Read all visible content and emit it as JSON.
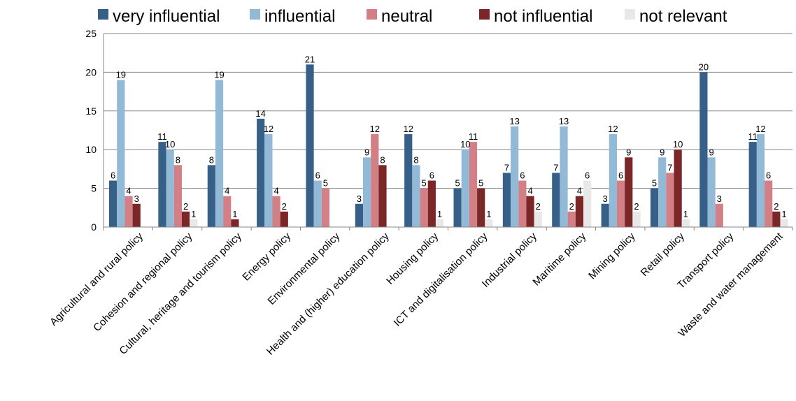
{
  "chart_data": {
    "type": "bar",
    "title": "",
    "xlabel": "",
    "ylabel": "",
    "ylim": [
      0,
      25
    ],
    "yticks": [
      0,
      5,
      10,
      15,
      20,
      25
    ],
    "grid": true,
    "legend_position": "top",
    "categories": [
      "Agricultural and rural policy",
      "Cohesion and regional policy",
      "Cultural, heritage and tourism policy",
      "Energy policy",
      "Environmental policy",
      "Health and (higher) education policy",
      "Housing policy",
      "ICT and digitalisation policy",
      "Industrial policy",
      "Maritime policy",
      "Mining policy",
      "Retail policy",
      "Transport policy",
      "Waste and water management"
    ],
    "series": [
      {
        "name": "very influential",
        "color": "#376088",
        "values": [
          6,
          11,
          8,
          14,
          21,
          3,
          12,
          5,
          7,
          7,
          3,
          5,
          20,
          11
        ]
      },
      {
        "name": "influential",
        "color": "#92B9D6",
        "values": [
          19,
          10,
          19,
          12,
          6,
          9,
          8,
          10,
          13,
          13,
          12,
          9,
          9,
          12
        ]
      },
      {
        "name": "neutral",
        "color": "#D27F86",
        "values": [
          4,
          8,
          4,
          4,
          5,
          12,
          5,
          11,
          6,
          2,
          6,
          7,
          3,
          6
        ]
      },
      {
        "name": "not influential",
        "color": "#7B2727",
        "values": [
          3,
          2,
          1,
          2,
          0,
          8,
          6,
          5,
          4,
          4,
          9,
          10,
          0,
          2
        ]
      },
      {
        "name": "not relevant",
        "color": "#E8E8E8",
        "values": [
          0,
          1,
          0,
          0,
          0,
          0,
          1,
          1,
          2,
          6,
          2,
          1,
          0,
          1
        ]
      }
    ]
  }
}
